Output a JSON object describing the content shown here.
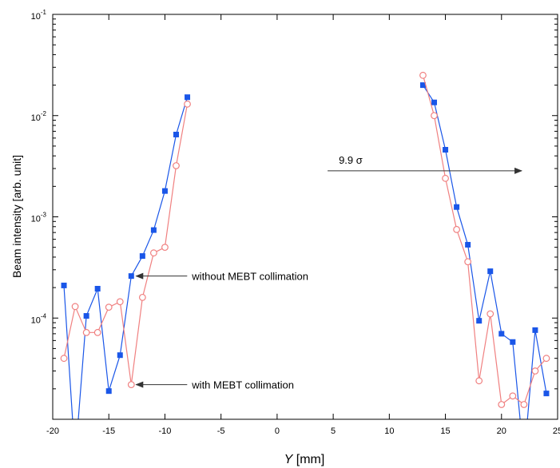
{
  "chart_data": {
    "type": "line",
    "xlabel": "Y",
    "xlabel_unit": " [mm]",
    "ylabel": "Beam intensity [arb. unit]",
    "xlim": [
      -20,
      25
    ],
    "ylim": [
      1e-05,
      0.1
    ],
    "y_scale": "log",
    "x_ticks": [
      "-20",
      "-15",
      "-10",
      "-5",
      "0",
      "5",
      "10",
      "15",
      "20",
      "25"
    ],
    "y_ticks": [
      {
        "base": "10",
        "exp": "-4",
        "value": 0.0001
      },
      {
        "base": "10",
        "exp": "-3",
        "value": 0.001
      },
      {
        "base": "10",
        "exp": "-2",
        "value": 0.01
      },
      {
        "base": "10",
        "exp": "-1",
        "value": 0.1
      }
    ],
    "series": [
      {
        "color": "#1a56e8",
        "marker": "filled-square",
        "segments": [
          [
            [
              -19,
              0.00021
            ],
            [
              -18,
              4e-06
            ],
            [
              -17,
              0.000105
            ],
            [
              -16,
              0.000195
            ],
            [
              -15,
              1.9e-05
            ],
            [
              -14,
              4.3e-05
            ],
            [
              -13,
              0.00026
            ],
            [
              -12,
              0.00041
            ],
            [
              -11,
              0.00074
            ],
            [
              -10,
              0.0018
            ],
            [
              -9,
              0.0065
            ],
            [
              -8,
              0.0152
            ]
          ],
          [
            [
              13,
              0.02
            ],
            [
              14,
              0.0135
            ],
            [
              15,
              0.0046
            ],
            [
              16,
              0.00125
            ],
            [
              17,
              0.00053
            ],
            [
              18,
              9.4e-05
            ],
            [
              19,
              0.00029
            ],
            [
              20,
              7e-05
            ],
            [
              21,
              5.8e-05
            ],
            [
              22,
              4e-06
            ],
            [
              23,
              7.6e-05
            ],
            [
              24,
              1.8e-05
            ]
          ]
        ]
      },
      {
        "color": "#f08080",
        "marker": "open-circle",
        "segments": [
          [
            [
              -19,
              4e-05
            ],
            [
              -18,
              0.00013
            ],
            [
              -17,
              7.2e-05
            ],
            [
              -16,
              7.2e-05
            ],
            [
              -15,
              0.000128
            ],
            [
              -14,
              0.000145
            ],
            [
              -13,
              2.2e-05
            ],
            [
              -12,
              0.00016
            ],
            [
              -11,
              0.00044
            ],
            [
              -10,
              0.0005
            ],
            [
              -9,
              0.0032
            ],
            [
              -8,
              0.013
            ]
          ],
          [
            [
              13,
              0.025
            ],
            [
              14,
              0.01
            ],
            [
              15,
              0.0024
            ],
            [
              16,
              0.00075
            ],
            [
              17,
              0.00036
            ],
            [
              18,
              2.4e-05
            ],
            [
              19,
              0.00011
            ],
            [
              20,
              1.4e-05
            ],
            [
              21,
              1.7e-05
            ],
            [
              22,
              1.4e-05
            ],
            [
              23,
              3e-05
            ],
            [
              24,
              4e-05
            ]
          ]
        ]
      }
    ],
    "annotations": [
      {
        "id": "without",
        "text": "without MEBT collimation",
        "target": [
          -13,
          0.00026
        ]
      },
      {
        "id": "with",
        "text": "with MEBT collimation",
        "target": [
          -13,
          2.2e-05
        ]
      },
      {
        "id": "sigma",
        "text": "9.9 σ",
        "arrow_from": [
          4.5,
          0.00285
        ],
        "arrow_to": [
          21.8,
          0.00285
        ]
      }
    ]
  }
}
